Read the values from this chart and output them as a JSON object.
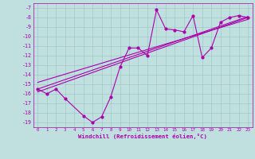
{
  "xlabel": "Windchill (Refroidissement éolien,°C)",
  "bg_color": "#c0e0e0",
  "grid_color": "#a0c8c8",
  "line_color": "#aa00aa",
  "xlim": [
    -0.5,
    23.5
  ],
  "ylim": [
    -19.5,
    -6.5
  ],
  "xticks": [
    0,
    1,
    2,
    3,
    4,
    5,
    6,
    7,
    8,
    9,
    10,
    11,
    12,
    13,
    14,
    15,
    16,
    17,
    18,
    19,
    20,
    21,
    22,
    23
  ],
  "yticks": [
    -7,
    -8,
    -9,
    -10,
    -11,
    -12,
    -13,
    -14,
    -15,
    -16,
    -17,
    -18,
    -19
  ],
  "line1_x": [
    0,
    1,
    2,
    3,
    5,
    6,
    7,
    8,
    9,
    10,
    11,
    12,
    13,
    14,
    15,
    16,
    17,
    18,
    19,
    20,
    21,
    22,
    23
  ],
  "line1_y": [
    -15.5,
    -16.0,
    -15.5,
    -16.5,
    -18.3,
    -19.0,
    -18.4,
    -16.3,
    -13.2,
    -11.2,
    -11.2,
    -12.0,
    -7.2,
    -9.2,
    -9.3,
    -9.5,
    -7.8,
    -12.2,
    -11.2,
    -8.5,
    -8.0,
    -7.8,
    -8.0
  ],
  "line2_x": [
    0,
    23
  ],
  "line2_y": [
    -15.5,
    -7.9
  ],
  "line3_x": [
    0,
    23
  ],
  "line3_y": [
    -15.8,
    -8.0
  ],
  "line4_x": [
    0,
    23
  ],
  "line4_y": [
    -14.8,
    -8.2
  ]
}
